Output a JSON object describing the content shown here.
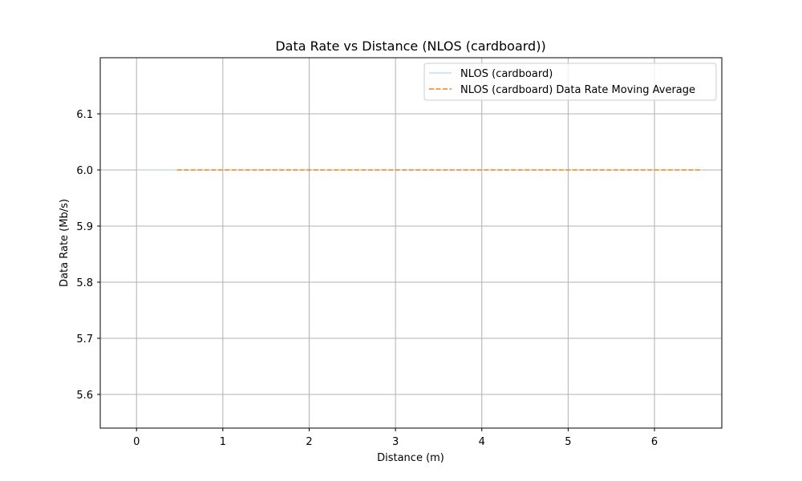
{
  "chart_data": {
    "type": "line",
    "title": "Data Rate vs Distance (NLOS (cardboard))",
    "xlabel": "Distance (m)",
    "ylabel": "Data Rate (Mb/s)",
    "xlim": [
      -0.42,
      6.78
    ],
    "ylim": [
      5.54,
      6.2
    ],
    "xticks": [
      0,
      1,
      2,
      3,
      4,
      5,
      6
    ],
    "yticks": [
      5.6,
      5.7,
      5.8,
      5.9,
      6.0,
      6.1
    ],
    "grid": true,
    "legend_position": "top-right",
    "series": [
      {
        "name": "NLOS (cardboard)",
        "style": "solid",
        "color": "#aec7e8",
        "x": [
          0.0,
          6.55
        ],
        "y": [
          6.0,
          6.0
        ]
      },
      {
        "name": "NLOS (cardboard) Data Rate Moving Average",
        "style": "dashed",
        "color": "#ff7f0e",
        "x": [
          0.47,
          6.55
        ],
        "y": [
          6.0,
          6.0
        ]
      }
    ]
  }
}
